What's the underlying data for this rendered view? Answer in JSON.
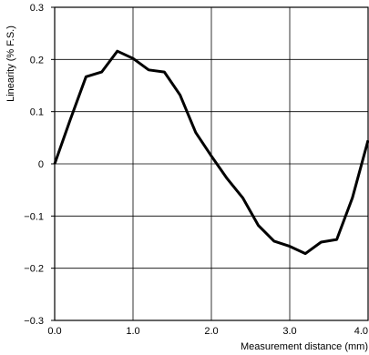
{
  "chart_data": {
    "type": "line",
    "title": "",
    "xlabel": "Measurement distance (mm)",
    "ylabel": "Linearity (% F.S.)",
    "xlim": [
      0.0,
      4.0
    ],
    "ylim": [
      -0.3,
      0.3
    ],
    "x_ticks": [
      0.0,
      1.0,
      2.0,
      3.0,
      4.0
    ],
    "x_tick_labels": [
      "0.0",
      "1.0",
      "2.0",
      "3.0",
      "4.0"
    ],
    "y_ticks": [
      -0.3,
      -0.2,
      -0.1,
      0,
      0.1,
      0.2,
      0.3
    ],
    "y_tick_labels": [
      "−0.3",
      "−0.2",
      "−0.1",
      "0",
      "0.1",
      "0.2",
      "0.3"
    ],
    "grid": true,
    "legend": "none",
    "line_color": "#000000",
    "grid_color": "#000000",
    "series": [
      {
        "x": [
          0.0,
          0.2,
          0.4,
          0.6,
          0.8,
          1.0,
          1.2,
          1.4,
          1.6,
          1.8,
          2.0,
          2.2,
          2.4,
          2.6,
          2.8,
          3.0,
          3.2,
          3.4,
          3.6,
          3.8,
          4.0
        ],
        "y": [
          0.0,
          0.085,
          0.167,
          0.176,
          0.216,
          0.202,
          0.18,
          0.176,
          0.132,
          0.06,
          0.015,
          -0.028,
          -0.065,
          -0.118,
          -0.148,
          -0.158,
          -0.172,
          -0.15,
          -0.145,
          -0.065,
          0.045
        ]
      }
    ]
  }
}
